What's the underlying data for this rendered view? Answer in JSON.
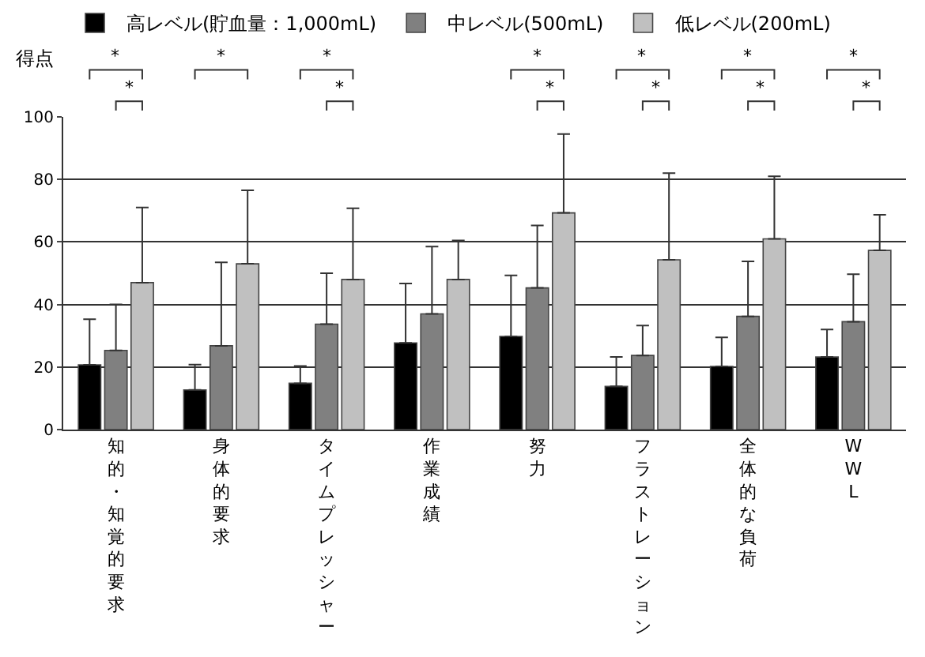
{
  "chart_data": {
    "type": "bar",
    "ylabel": "得点",
    "categories": [
      "知的・知覚的要求",
      "身体的要求",
      "タイムプレッシャー",
      "作業成績",
      "努力",
      "フラストレーション",
      "全体的な負荷",
      "WWL"
    ],
    "series": [
      {
        "name": "高レベル(貯血量：1,000mL)",
        "color": "#000000",
        "values": [
          20.7,
          12.7,
          14.8,
          27.7,
          29.8,
          13.8,
          20.2,
          23.2
        ],
        "errors": [
          [
            20.7,
            35.3
          ],
          [
            12.7,
            20.8
          ],
          [
            14.8,
            20.3
          ],
          [
            27.7,
            46.7
          ],
          [
            29.8,
            49.3
          ],
          [
            13.8,
            23.2
          ],
          [
            20.2,
            29.5
          ],
          [
            23.2,
            32.0
          ]
        ]
      },
      {
        "name": "中レベル(500mL)",
        "color": "#808080",
        "values": [
          25.3,
          26.8,
          33.7,
          37.0,
          45.3,
          23.7,
          36.2,
          34.5
        ],
        "errors": [
          [
            25.3,
            40.0
          ],
          [
            26.8,
            53.5
          ],
          [
            33.7,
            50.0
          ],
          [
            37.0,
            58.5
          ],
          [
            45.3,
            65.3
          ],
          [
            23.7,
            33.3
          ],
          [
            36.2,
            53.8
          ],
          [
            34.5,
            49.7
          ]
        ]
      },
      {
        "name": "低レベル(200mL)",
        "color": "#c0c0c0",
        "values": [
          47.0,
          53.0,
          48.0,
          48.0,
          69.3,
          54.3,
          61.0,
          57.3
        ],
        "errors": [
          [
            47.0,
            71.0
          ],
          [
            53.0,
            76.5
          ],
          [
            48.0,
            70.8
          ],
          [
            48.0,
            60.5
          ],
          [
            69.3,
            94.5
          ],
          [
            54.3,
            82.0
          ],
          [
            61.0,
            81.0
          ],
          [
            57.3,
            68.7
          ]
        ]
      }
    ],
    "ylim": [
      0,
      100
    ],
    "yticks": [
      0,
      20,
      40,
      60,
      80,
      100
    ],
    "grid": "y",
    "legend": "top left",
    "annotations": [
      "*",
      "*",
      "*",
      "*",
      "*",
      "*",
      "*",
      "*",
      "*",
      "*",
      "*",
      "*",
      "*"
    ]
  }
}
